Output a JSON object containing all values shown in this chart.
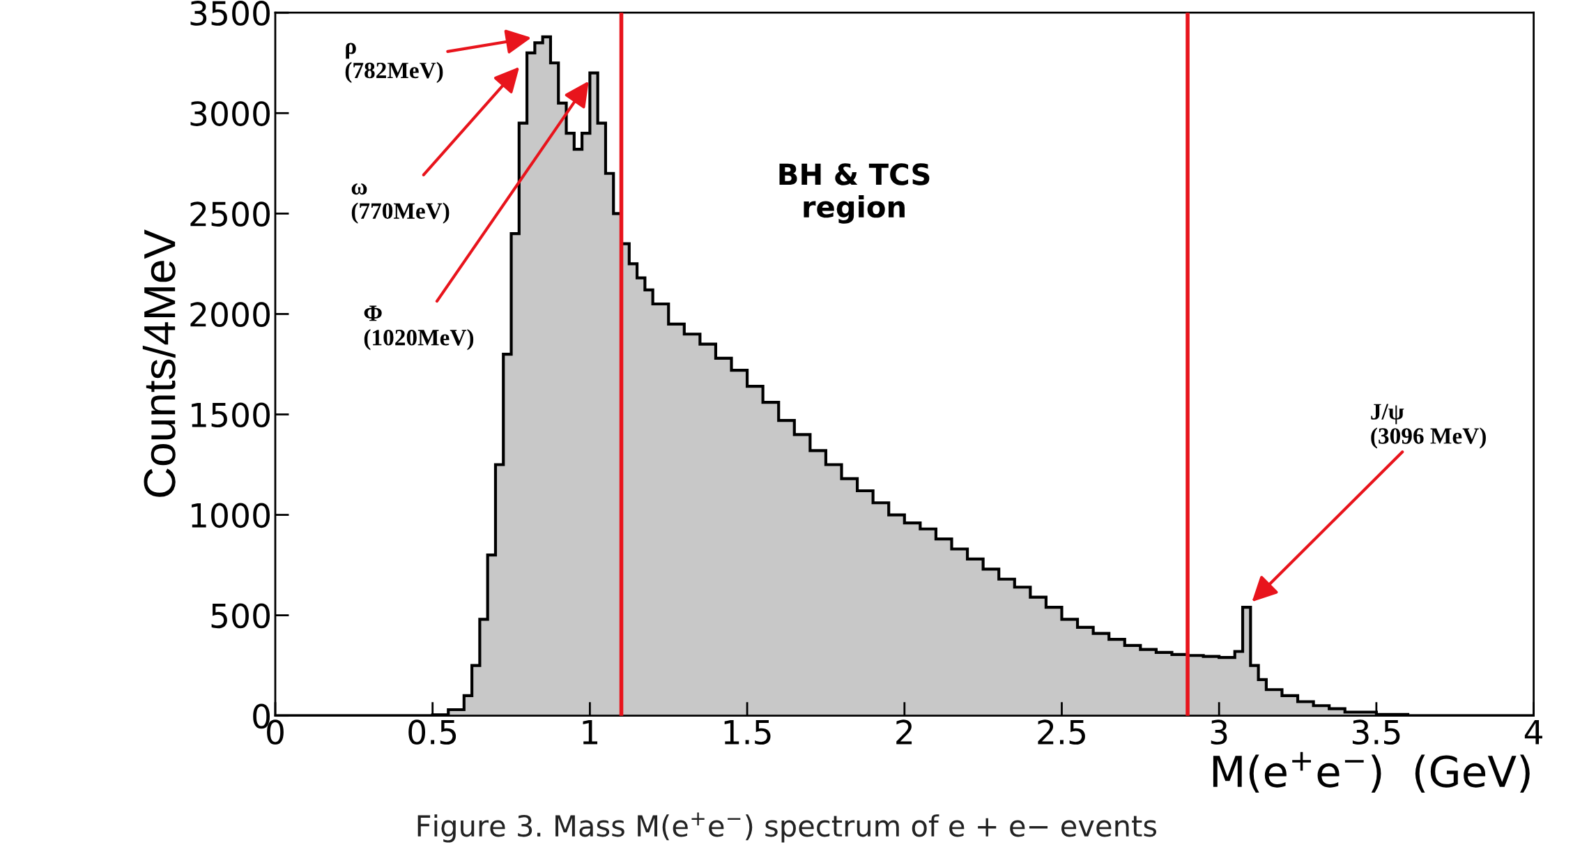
{
  "chart_data": {
    "type": "histogram",
    "xlabel": "M(e$^{+}$e$^{−}$)  (GeV)",
    "ylabel": "Counts/4MeV",
    "bins": [
      0,
      0.5,
      0.55,
      0.6,
      0.625,
      0.65,
      0.675,
      0.7,
      0.725,
      0.75,
      0.775,
      0.8,
      0.825,
      0.85,
      0.875,
      0.9,
      0.925,
      0.95,
      0.975,
      1.0,
      1.025,
      1.05,
      1.075,
      1.1,
      1.125,
      1.15,
      1.175,
      1.2,
      1.25,
      1.3,
      1.35,
      1.4,
      1.45,
      1.5,
      1.55,
      1.6,
      1.65,
      1.7,
      1.75,
      1.8,
      1.85,
      1.9,
      1.95,
      2.0,
      2.05,
      2.1,
      2.15,
      2.2,
      2.25,
      2.3,
      2.35,
      2.4,
      2.45,
      2.5,
      2.55,
      2.6,
      2.65,
      2.7,
      2.75,
      2.8,
      2.85,
      2.9,
      2.95,
      3.0,
      3.05,
      3.075,
      3.1,
      3.125,
      3.15,
      3.2,
      3.25,
      3.3,
      3.35,
      3.4,
      3.5,
      3.6,
      4.0
    ],
    "values": [
      0,
      5,
      30,
      100,
      250,
      480,
      800,
      1250,
      1800,
      2400,
      2950,
      3300,
      3350,
      3380,
      3250,
      3050,
      2900,
      2820,
      2900,
      3200,
      2950,
      2700,
      2500,
      2350,
      2250,
      2180,
      2120,
      2050,
      1950,
      1900,
      1850,
      1780,
      1720,
      1640,
      1560,
      1470,
      1400,
      1320,
      1250,
      1180,
      1120,
      1060,
      1000,
      960,
      930,
      880,
      830,
      780,
      730,
      680,
      640,
      590,
      540,
      480,
      440,
      410,
      380,
      350,
      330,
      315,
      305,
      300,
      295,
      290,
      320,
      540,
      250,
      180,
      130,
      100,
      70,
      50,
      35,
      18,
      6,
      0
    ],
    "color": "#c8c8c8",
    "xlim": [
      0,
      4
    ],
    "ylim": [
      0,
      3500
    ],
    "xticks": [
      0,
      0.5,
      1,
      1.5,
      2,
      2.5,
      3,
      3.5,
      4
    ],
    "yticks": [
      0,
      500,
      1000,
      1500,
      2000,
      2500,
      3000,
      3500
    ],
    "grid": false,
    "legend": false,
    "ref_lines": [
      {
        "axis": "x",
        "value": 1.1,
        "color": "#e8141c"
      },
      {
        "axis": "x",
        "value": 2.9,
        "color": "#e8141c"
      }
    ],
    "annotations": [
      "ρ\n(782MeV)",
      "ω\n(770MeV)",
      "Φ\n(1020MeV)",
      "J/ψ\n(3096 MeV)",
      "BH & TCS\nregion",
      "Figure 3. Mass M(e$^{+}$e$^{−}$) spectrum of e + e− events"
    ]
  }
}
